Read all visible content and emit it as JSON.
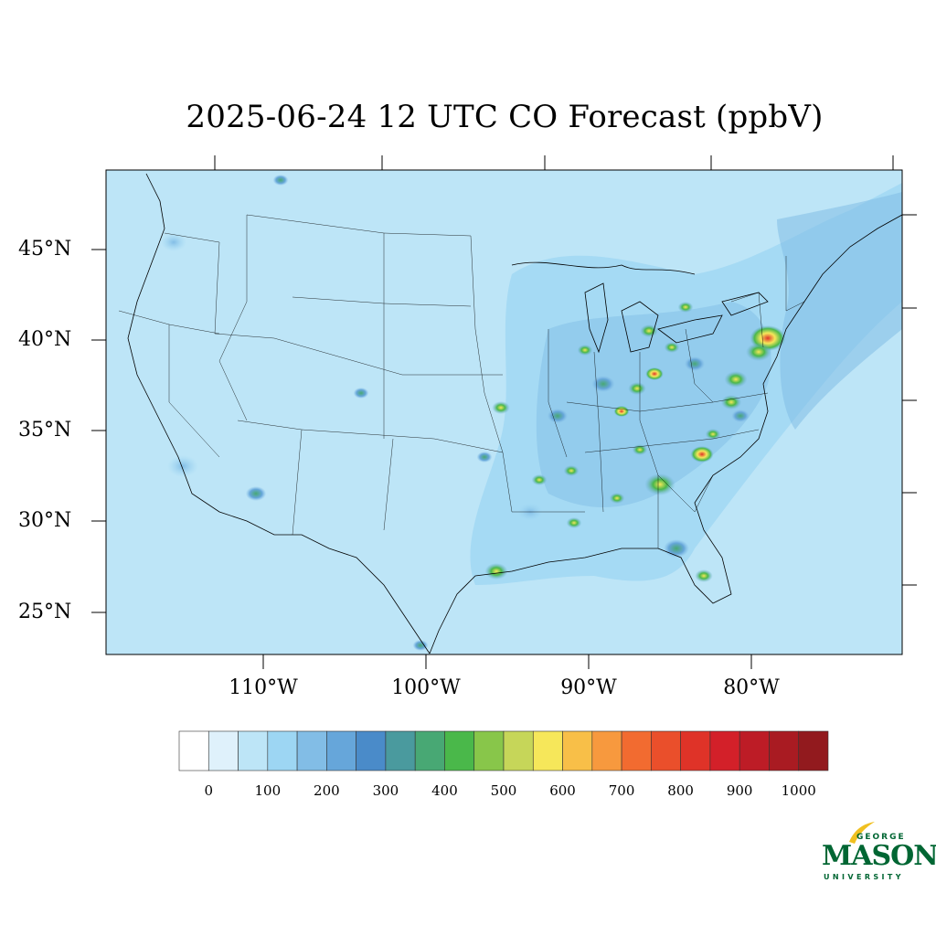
{
  "title": "2025-06-24 12 UTC CO Forecast (ppbV)",
  "latitude_labels": [
    "45°N",
    "40°N",
    "35°N",
    "30°N",
    "25°N"
  ],
  "longitude_labels": [
    "110°W",
    "100°W",
    "90°W",
    "80°W"
  ],
  "colorbar": {
    "tick_labels": [
      "0",
      "100",
      "200",
      "300",
      "400",
      "500",
      "600",
      "700",
      "800",
      "900",
      "1000"
    ],
    "colors": [
      "#ffffff",
      "#dff1fb",
      "#bde5f7",
      "#9dd6f3",
      "#82bde6",
      "#66a6da",
      "#4a8bc9",
      "#4a9a9e",
      "#48a874",
      "#4ab84a",
      "#88c64a",
      "#c6d659",
      "#f6e75a",
      "#f8bf48",
      "#f7993e",
      "#f26b30",
      "#ea4f2b",
      "#df3328",
      "#d32029",
      "#bd1c26",
      "#a91b22",
      "#921a1e"
    ]
  },
  "map_background_color": "#bde5f7",
  "logo": {
    "top_text": "GEORGE",
    "main_text": "MASON",
    "bottom_text": "UNIVERSITY",
    "color": "#006633",
    "accent_color": "#f0c020"
  }
}
